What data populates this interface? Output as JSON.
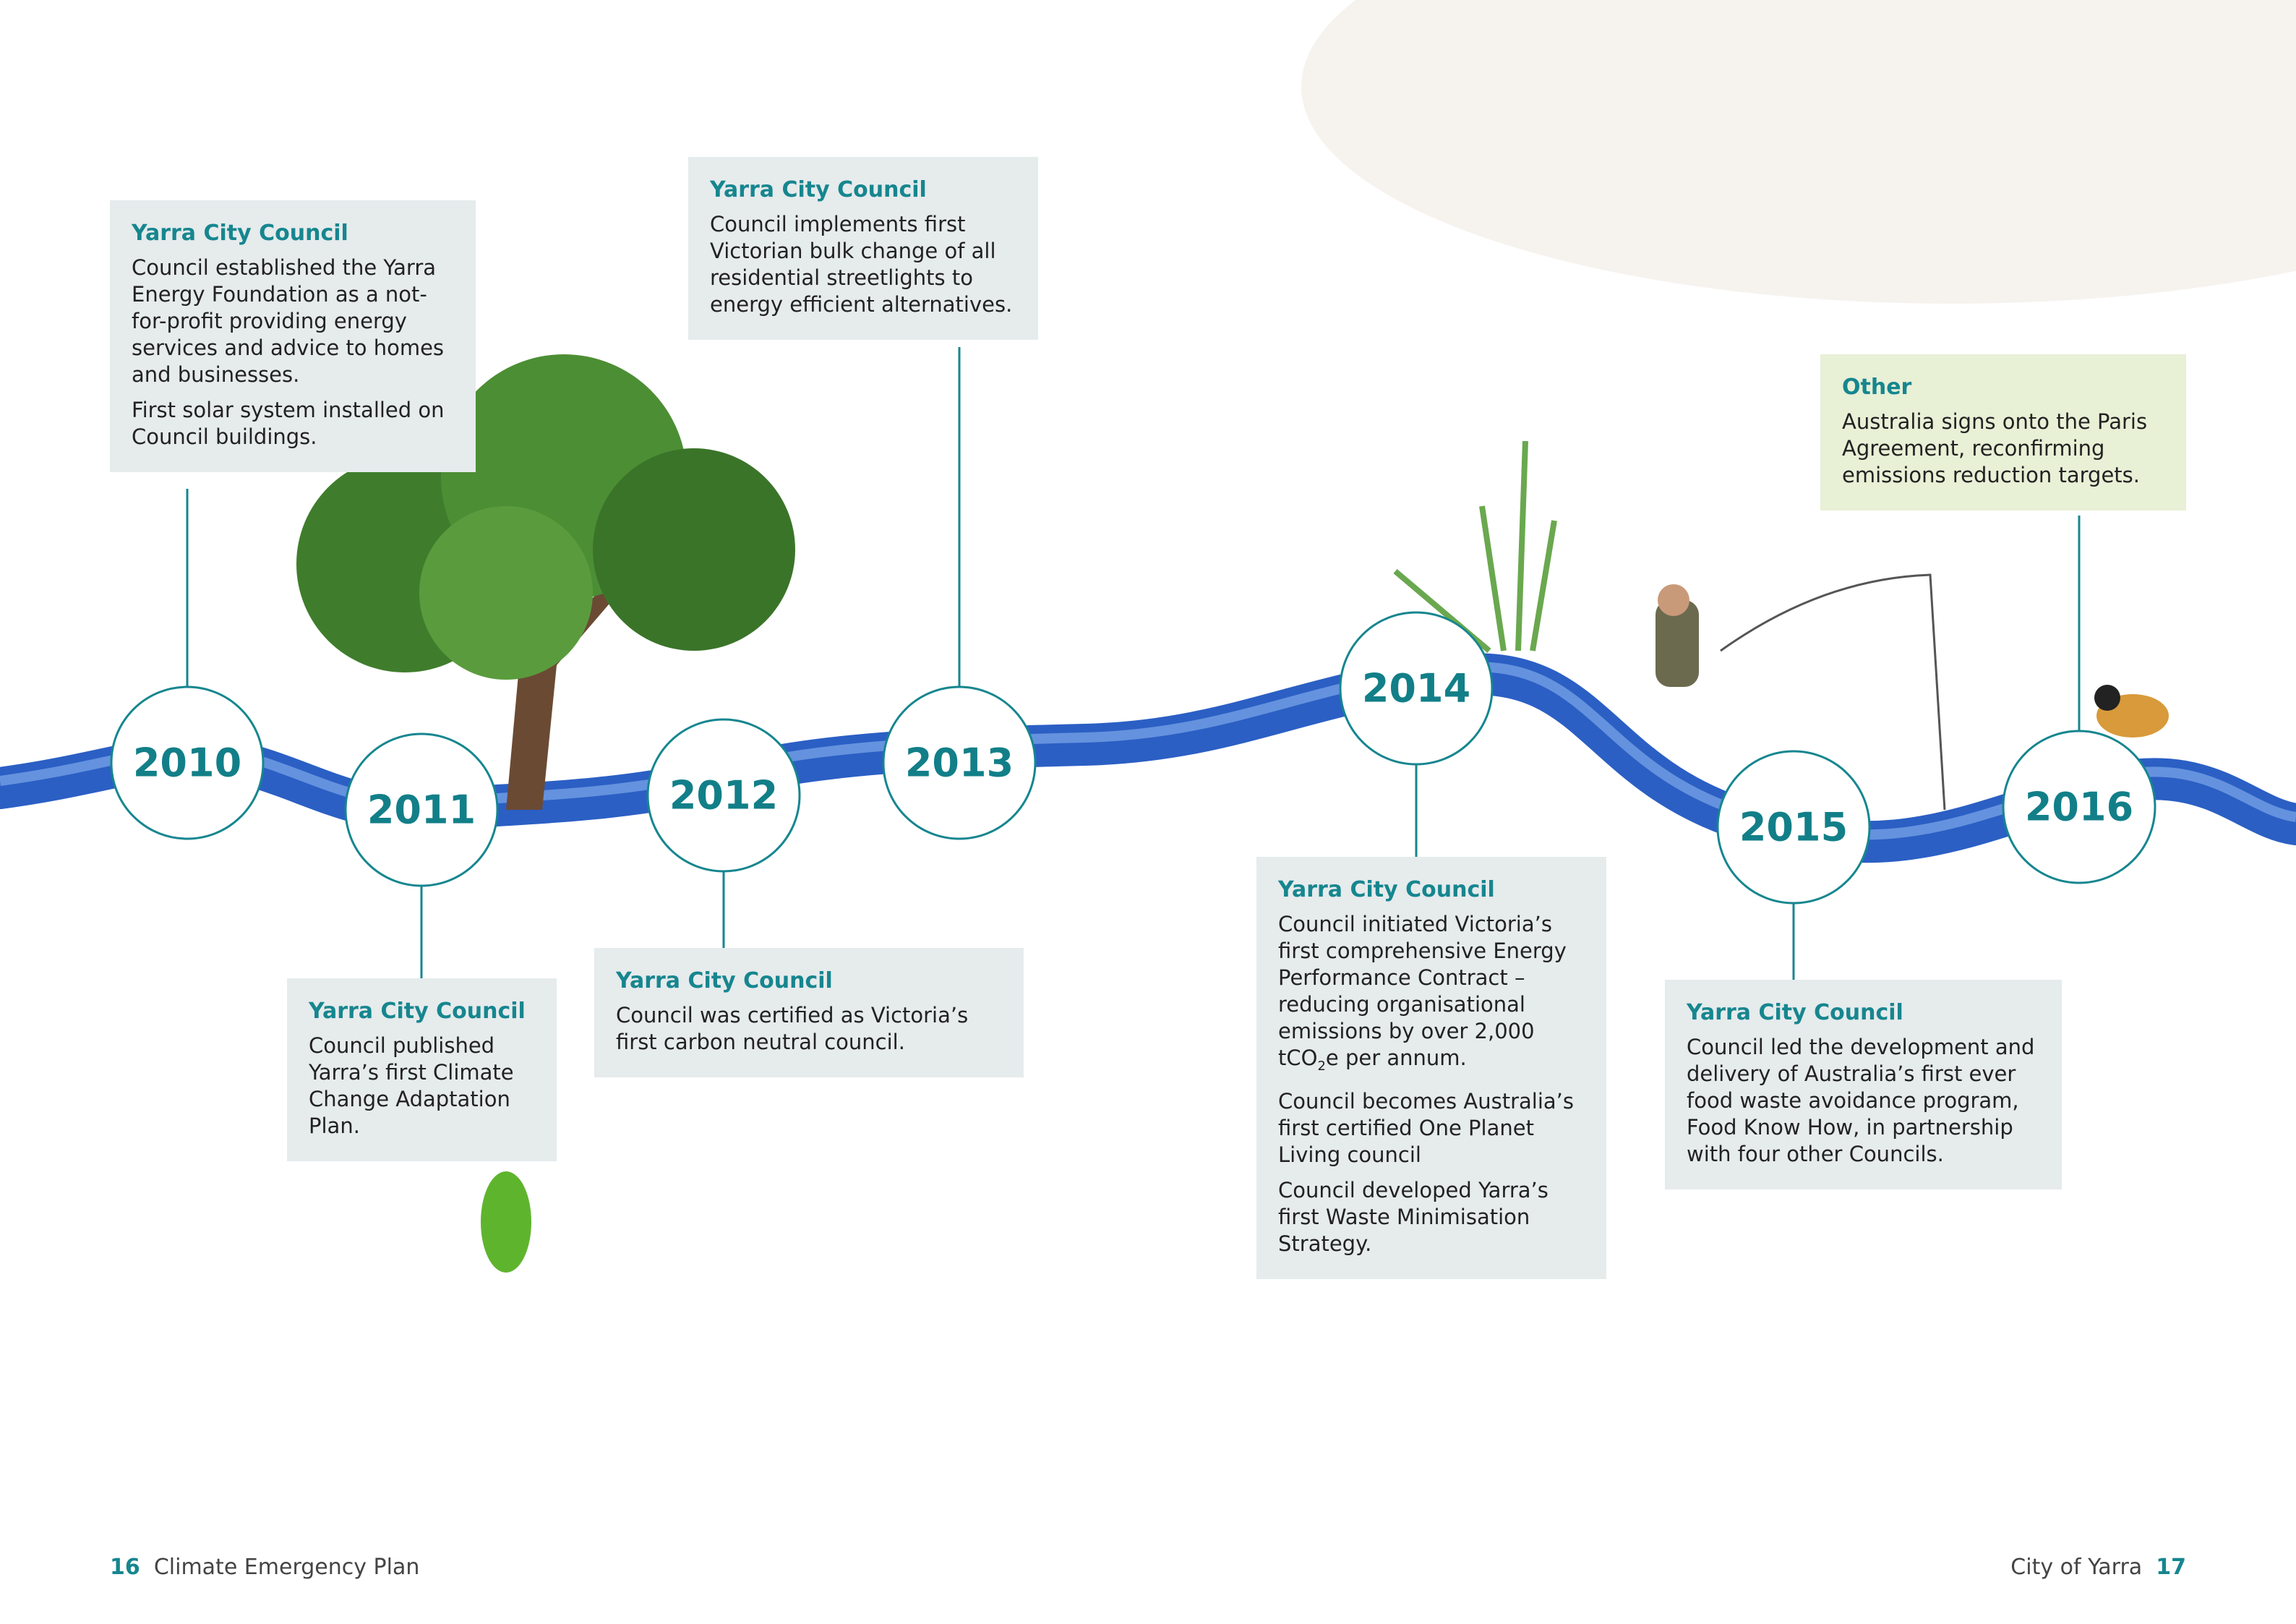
{
  "timeline": [
    {
      "year": "2010",
      "box": {
        "heading": "Yarra City Council",
        "paragraphs": [
          {
            "text": "Council established the Yarra Energy Foundation as a not-for-profit providing energy services and advice to homes and businesses."
          },
          {
            "text": "First solar system installed on Council buildings."
          }
        ]
      }
    },
    {
      "year": "2011",
      "box": {
        "heading": "Yarra City Council",
        "paragraphs": [
          {
            "text": "Council published Yarra’s first Climate Change Adaptation Plan."
          }
        ]
      }
    },
    {
      "year": "2012",
      "box": {
        "heading": "Yarra City Council",
        "paragraphs": [
          {
            "text": "Council was certified as Victoria’s first carbon neutral council."
          }
        ]
      }
    },
    {
      "year": "2013",
      "box": {
        "heading": "Yarra City Council",
        "paragraphs": [
          {
            "text": "Council implements first Victorian bulk change of all residential streetlights to energy efficient alternatives."
          }
        ]
      }
    },
    {
      "year": "2014",
      "box": {
        "heading": "Yarra City Council",
        "paragraphs": [
          {
            "text": "Council initiated Victoria’s first comprehensive Energy Performance Contract – reducing organisational emissions by over 2,000 tCO",
            "subscript": "2",
            "text_after": "e per annum."
          },
          {
            "text": "Council becomes Australia’s first certified One Planet Living council"
          },
          {
            "text": "Council developed Yarra’s first Waste Minimisation Strategy."
          }
        ]
      }
    },
    {
      "year": "2015",
      "box": {
        "heading": "Yarra City Council",
        "paragraphs": [
          {
            "text": "Council led the development and delivery of Australia’s first ever food waste avoidance program, Food Know How, in partnership with four other Councils."
          }
        ]
      }
    },
    {
      "year": "2016",
      "box": {
        "heading": "Other",
        "paragraphs": [
          {
            "text": "Australia signs onto the Paris Agreement, reconfirming emissions reduction targets."
          }
        ]
      }
    }
  ],
  "footer": {
    "left_page": "16",
    "left_title": "Climate Emergency Plan",
    "right_title": "City of Yarra",
    "right_page": "17"
  }
}
